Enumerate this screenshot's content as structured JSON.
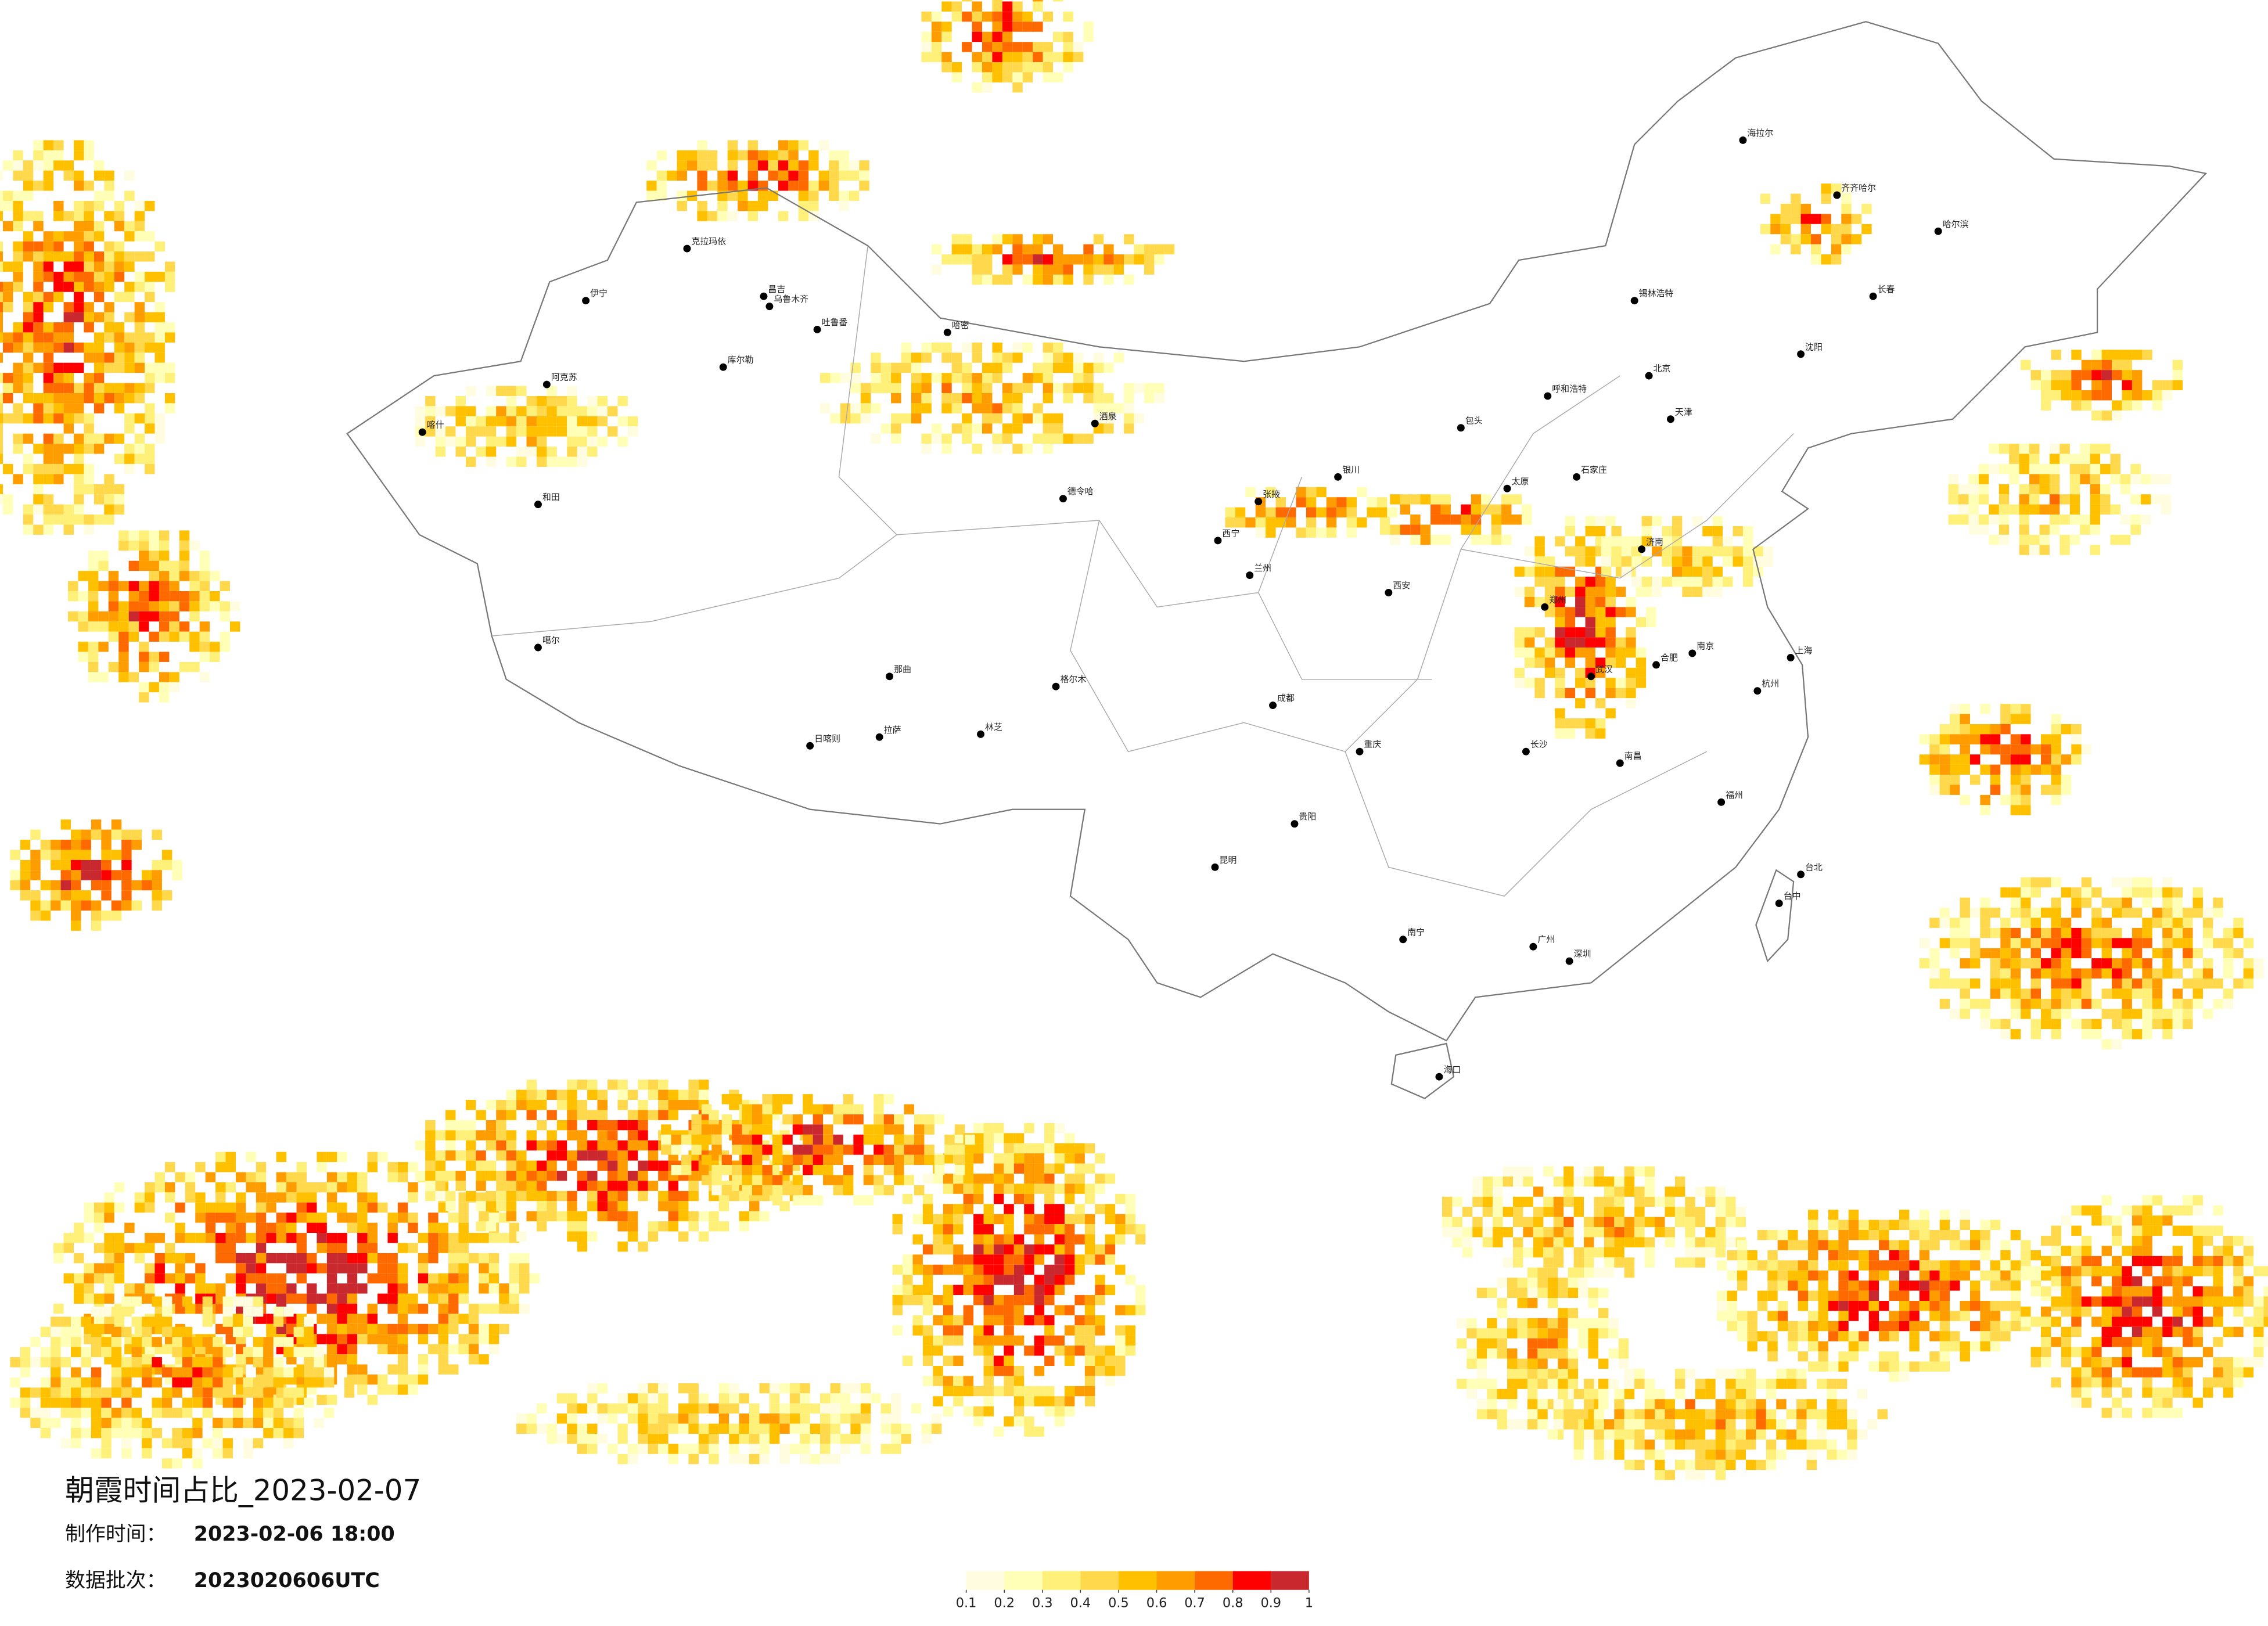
{
  "map": {
    "title": "朝霞时间占比_2023-02-07",
    "make_time_label": "制作时间：",
    "make_time": "2023-02-06 18:00",
    "batch_label": "数据批次：",
    "batch": "2023020606UTC",
    "legend": {
      "ticks": [
        0.1,
        0.2,
        0.3,
        0.4,
        0.5,
        0.6,
        0.7,
        0.8,
        0.9,
        1
      ],
      "colors": [
        "#fffce0",
        "#ffffb8",
        "#fff07a",
        "#ffd84c",
        "#ffc000",
        "#ff9c00",
        "#ff6a00",
        "#ff0000",
        "#c8282e"
      ]
    },
    "cities": [
      "伊宁",
      "克拉玛依",
      "昌吉",
      "乌鲁木齐",
      "吐鲁番",
      "哈密",
      "库尔勒",
      "阿克苏",
      "和田",
      "喀什",
      "噶尔",
      "德令哈",
      "格尔木",
      "拉萨",
      "林芝",
      "日喀则",
      "那曲",
      "酒泉",
      "张掖",
      "西宁",
      "兰州",
      "银川",
      "呼和浩特",
      "包头",
      "太原",
      "石家庄",
      "北京",
      "天津",
      "济南",
      "郑州",
      "西安",
      "成都",
      "重庆",
      "昆明",
      "贵阳",
      "南宁",
      "广州",
      "深圳",
      "长沙",
      "武汉",
      "南昌",
      "福州",
      "杭州",
      "南京",
      "合肥",
      "上海",
      "沈阳",
      "长春",
      "哈尔滨",
      "海口",
      "台北",
      "台中",
      "海拉尔",
      "齐齐哈尔",
      "锡林浩特"
    ]
  }
}
